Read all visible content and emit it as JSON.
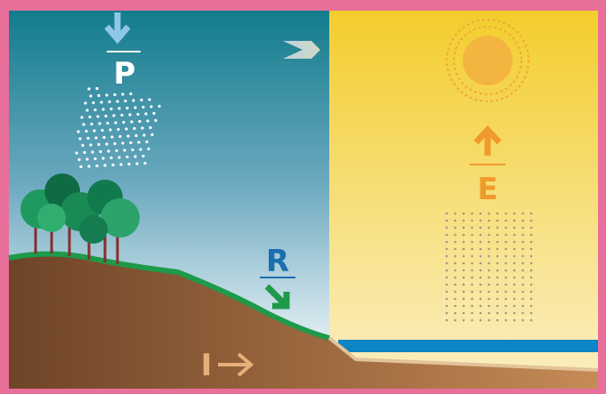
{
  "labels": [
    "P",
    "E",
    "R",
    "I"
  ]
}
